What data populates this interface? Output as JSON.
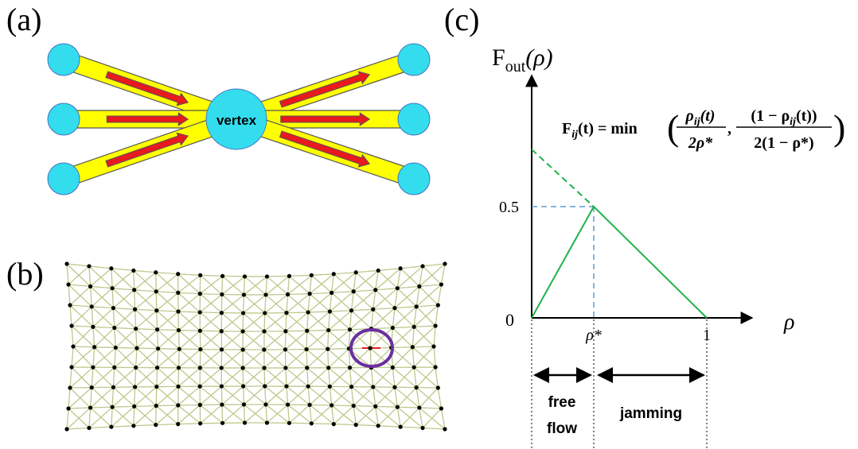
{
  "panels": {
    "a": "(a)",
    "b": "(b)",
    "c": "(c)"
  },
  "vertex_label": "vertex",
  "y_axis": {
    "label": "F",
    "label_sub": "out",
    "label_rest": "(ρ)",
    "tick": "0.5"
  },
  "x_axis": {
    "label": "ρ",
    "origin": "0",
    "critical": "ρ*",
    "end": "1"
  },
  "formula": {
    "lhs": "F",
    "lhs_sub": "ij",
    "lhs_rest": "(t) = min",
    "open": "(",
    "num1": "ρ",
    "num1_sub": "ij",
    "num1_rest": "(t)",
    "den1": "2ρ*",
    "comma": ",",
    "num2": "(1 − ρ",
    "num2_sub": "ij",
    "num2_rest": "(t))",
    "den2": "2(1 − ρ*)",
    "close": ")"
  },
  "regions": {
    "free_flow": [
      "free",
      "flow"
    ],
    "jamming": "jamming"
  }
}
